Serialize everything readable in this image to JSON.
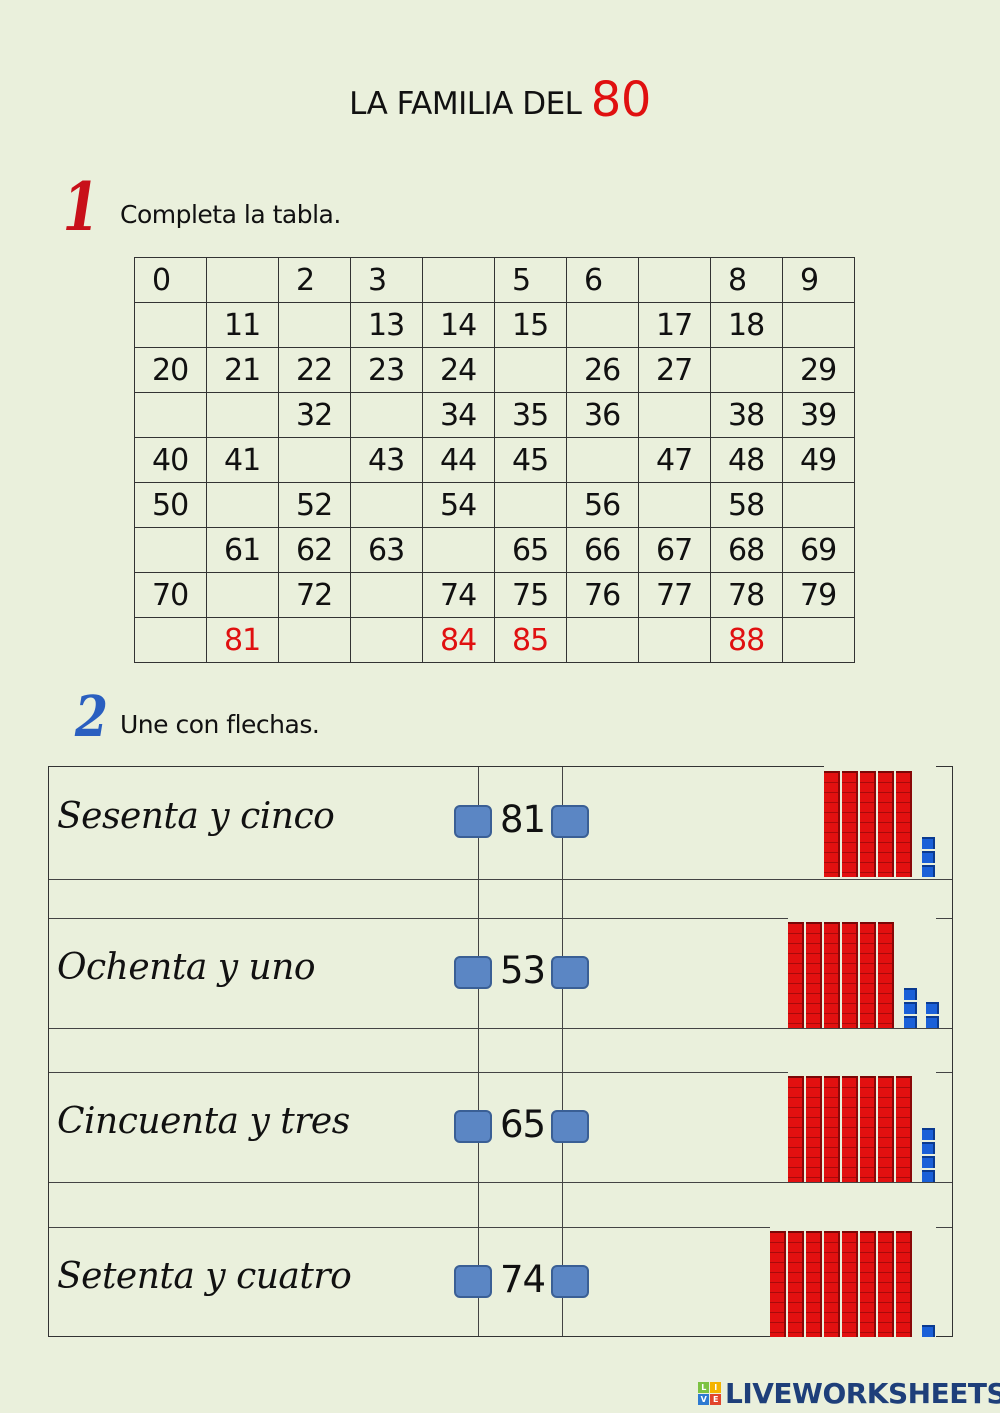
{
  "title": {
    "text": "LA FAMILIA DEL",
    "number": "80"
  },
  "exercise1": {
    "badge": "1",
    "instruction": "Completa la tabla.",
    "rows": [
      [
        "0",
        "",
        "2",
        "3",
        "",
        "5",
        "6",
        "",
        "8",
        "9"
      ],
      [
        "",
        "11",
        "",
        "13",
        "14",
        "15",
        "",
        "17",
        "18",
        ""
      ],
      [
        "20",
        "21",
        "22",
        "23",
        "24",
        "",
        "26",
        "27",
        "",
        "29"
      ],
      [
        "",
        "",
        "32",
        "",
        "34",
        "35",
        "36",
        "",
        "38",
        "39"
      ],
      [
        "40",
        "41",
        "",
        "43",
        "44",
        "45",
        "",
        "47",
        "48",
        "49"
      ],
      [
        "50",
        "",
        "52",
        "",
        "54",
        "",
        "56",
        "",
        "58",
        ""
      ],
      [
        "",
        "61",
        "62",
        "63",
        "",
        "65",
        "66",
        "67",
        "68",
        "69"
      ],
      [
        "70",
        "",
        "72",
        "",
        "74",
        "75",
        "76",
        "77",
        "78",
        "79"
      ],
      [
        "",
        "81",
        "",
        "",
        "84",
        "85",
        "",
        "",
        "88",
        ""
      ]
    ],
    "highlighted_values": [
      "81",
      "84",
      "85",
      "88"
    ],
    "highlight_color": "#e01010"
  },
  "exercise2": {
    "badge": "2",
    "instruction": "Une con flechas.",
    "rows": [
      {
        "word": "Sesenta y cinco",
        "number": "81",
        "blocks": {
          "tens": 5,
          "ones": 3
        }
      },
      {
        "word": "Ochenta y uno",
        "number": "53",
        "blocks": {
          "tens": 6,
          "ones": 5
        }
      },
      {
        "word": "Cincuenta y tres",
        "number": "65",
        "blocks": {
          "tens": 7,
          "ones": 4
        }
      },
      {
        "word": "Setenta y cuatro",
        "number": "74",
        "blocks": {
          "tens": 8,
          "ones": 1
        }
      }
    ],
    "colors": {
      "tens": "#e21010",
      "ones": "#1a60d8",
      "connector": "#5b86c4"
    }
  },
  "footer": {
    "logo": "LIVEWORKSHEETS"
  }
}
